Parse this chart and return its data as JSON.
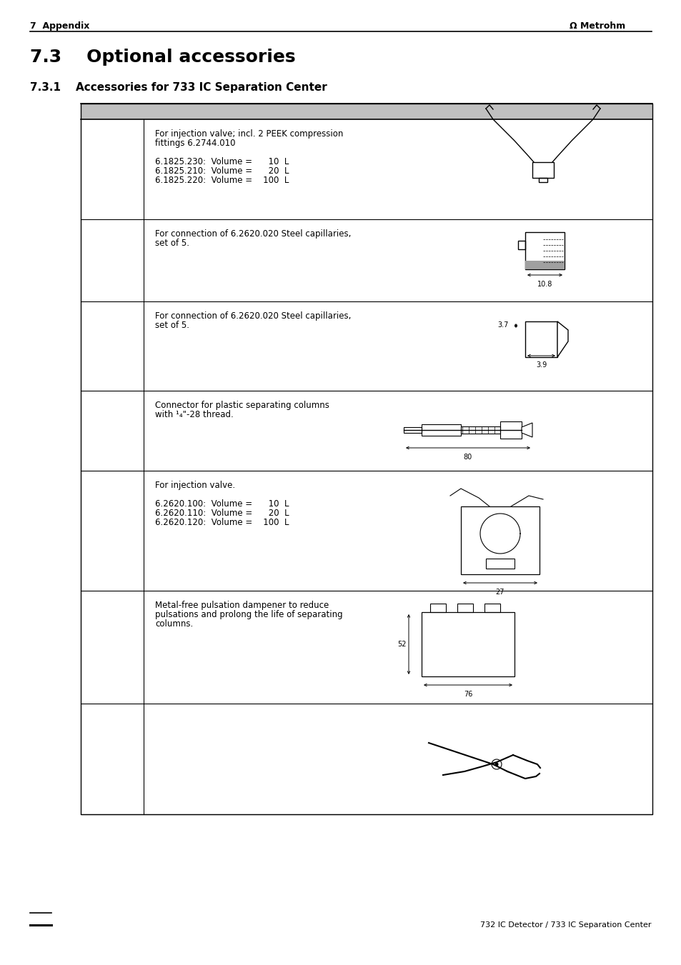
{
  "page_header_left": "7  Appendix",
  "page_header_right": "Metrohm",
  "section_title": "7.3    Optional accessories",
  "subsection_title": "7.3.1    Accessories for 733 IC Separation Center",
  "footer_right": "732 IC Detector / 733 IC Separation Center",
  "table_header_bg": "#c0c0c0",
  "table_border_color": "#000000",
  "row_texts": [
    [
      "For injection valve; incl. 2 PEEK compression",
      "fittings 6.2744.010",
      "",
      "6.1825.230:  Volume =      10  L",
      "6.1825.210:  Volume =      20  L",
      "6.1825.220:  Volume =    100  L"
    ],
    [
      "For connection of 6.2620.020 Steel capillaries,",
      "set of 5."
    ],
    [
      "For connection of 6.2620.020 Steel capillaries,",
      "set of 5."
    ],
    [
      "Connector for plastic separating columns",
      "with ¹₄\"-28 thread."
    ],
    [
      "For injection valve.",
      "",
      "6.2620.100:  Volume =      10  L",
      "6.2620.110:  Volume =      20  L",
      "6.2620.120:  Volume =    100  L"
    ],
    [
      "Metal-free pulsation dampener to reduce",
      "pulsations and prolong the life of separating",
      "columns."
    ],
    []
  ],
  "dim_labels": [
    "10.8",
    "3.7",
    "3.9",
    "80",
    "27",
    "52",
    "76"
  ],
  "bg_color": "#ffffff",
  "text_color": "#000000"
}
